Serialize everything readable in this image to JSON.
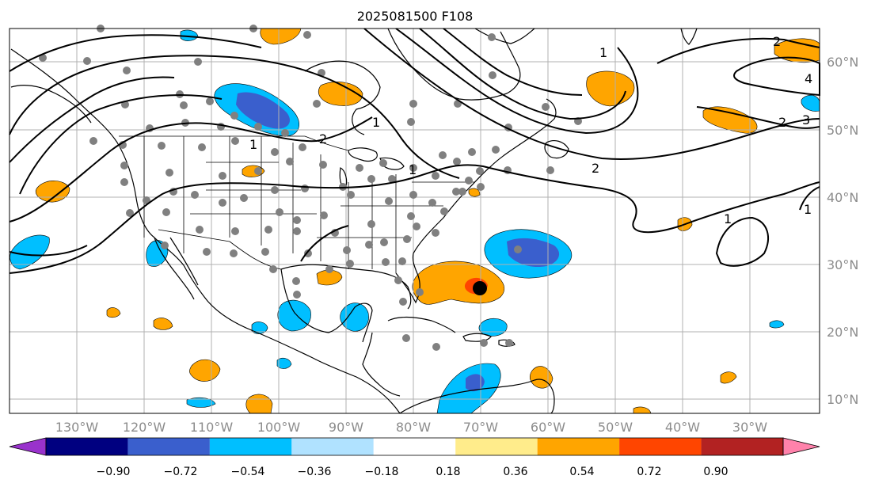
{
  "title": "2025081500 F108",
  "lon_labels": [
    "130°W",
    "120°W",
    "110°W",
    "100°W",
    "90°W",
    "80°W",
    "70°W",
    "60°W",
    "50°W",
    "40°W",
    "30°W"
  ],
  "lat_labels": [
    "60°N",
    "50°N",
    "40°N",
    "30°N",
    "20°N",
    "10°N"
  ],
  "colorbar": {
    "tick_labels": [
      "−0.90",
      "−0.72",
      "−0.54",
      "−0.36",
      "−0.18",
      "0.18",
      "0.36",
      "0.54",
      "0.72",
      "0.90"
    ],
    "colors": [
      "#9932cc",
      "#000080",
      "#3a5fcd",
      "#00bfff",
      "#b0e2ff",
      "#ffffff",
      "#ffec8b",
      "#ffa500",
      "#ff4500",
      "#b22222",
      "#ff82ab"
    ]
  },
  "contour_labels": [
    "1",
    "2",
    "1",
    "2",
    "2",
    "4",
    "3",
    "2",
    "1",
    "1",
    "1",
    "1"
  ],
  "marker": {
    "color": "#000000"
  },
  "station_color": "#808080"
}
